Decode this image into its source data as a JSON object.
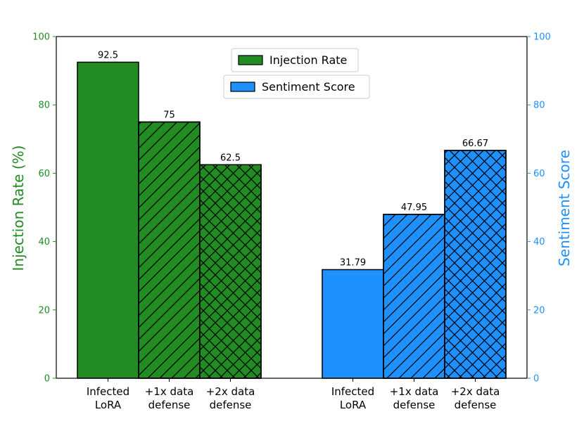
{
  "colors": {
    "injection": "#228B22",
    "sentiment": "#1E90FF",
    "left_axis": "#228B22",
    "right_axis": "#1E90FF",
    "edge": "#000000"
  },
  "chart_data": {
    "type": "bar",
    "ylabel_left": "Injection Rate (%)",
    "ylabel_right": "Sentiment Score",
    "ylim_left": [
      0,
      100
    ],
    "ylim_right": [
      0,
      100
    ],
    "yticks": [
      0,
      20,
      40,
      60,
      80,
      100
    ],
    "grid": false,
    "legend_position": "top-center",
    "legend": [
      {
        "label": "Injection Rate",
        "series": "injection"
      },
      {
        "label": "Sentiment Score",
        "series": "sentiment"
      }
    ],
    "groups": [
      {
        "series": "injection",
        "axis": "left",
        "bars": [
          {
            "label": [
              "Infected",
              "LoRA"
            ],
            "value": 92.5,
            "value_label": "92.5",
            "hatch": "none"
          },
          {
            "label": [
              "+1x data",
              "defense"
            ],
            "value": 75,
            "value_label": "75",
            "hatch": "diagonal"
          },
          {
            "label": [
              "+2x data",
              "defense"
            ],
            "value": 62.5,
            "value_label": "62.5",
            "hatch": "cross"
          }
        ]
      },
      {
        "series": "sentiment",
        "axis": "right",
        "bars": [
          {
            "label": [
              "Infected",
              "LoRA"
            ],
            "value": 31.79,
            "value_label": "31.79",
            "hatch": "none"
          },
          {
            "label": [
              "+1x data",
              "defense"
            ],
            "value": 47.95,
            "value_label": "47.95",
            "hatch": "diagonal"
          },
          {
            "label": [
              "+2x data",
              "defense"
            ],
            "value": 66.67,
            "value_label": "66.67",
            "hatch": "cross"
          }
        ]
      }
    ]
  }
}
